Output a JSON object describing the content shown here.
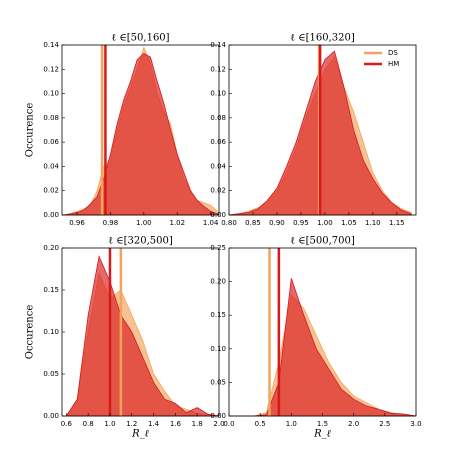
{
  "chart_data": [
    {
      "type": "area",
      "title": "ℓ ∈[50,160]",
      "ylabel": "Occurence",
      "x": [
        0.952,
        0.956,
        0.96,
        0.964,
        0.968,
        0.972,
        0.976,
        0.98,
        0.984,
        0.988,
        0.992,
        0.996,
        1.0,
        1.004,
        1.008,
        1.012,
        1.016,
        1.02,
        1.024,
        1.028,
        1.032,
        1.036,
        1.04,
        1.044
      ],
      "series": [
        {
          "color": "#f5a35b",
          "mean": 0.975,
          "values": [
            0,
            0.001,
            0.003,
            0.005,
            0.008,
            0.02,
            0.04,
            0.045,
            0.07,
            0.09,
            0.105,
            0.12,
            0.138,
            0.125,
            0.1,
            0.085,
            0.075,
            0.05,
            0.03,
            0.02,
            0.012,
            0.01,
            0.008,
            0.003
          ]
        },
        {
          "color": "#d7191c",
          "mean": 0.977,
          "values": [
            0,
            0.001,
            0.002,
            0.004,
            0.009,
            0.015,
            0.03,
            0.05,
            0.075,
            0.095,
            0.11,
            0.128,
            0.133,
            0.13,
            0.11,
            0.092,
            0.07,
            0.05,
            0.035,
            0.02,
            0.012,
            0.007,
            0.003,
            0.001
          ]
        }
      ],
      "xlim": [
        0.951,
        1.045
      ],
      "ylim": [
        0,
        0.14
      ],
      "xticks": [
        0.96,
        0.98,
        {
          "value": 1,
          "label": "1.00"
        },
        1.02,
        1.04
      ],
      "yticks": [
        {
          "value": 0,
          "label": "0.00"
        },
        0.02,
        0.04,
        0.06,
        0.08,
        {
          "value": 0.1,
          "label": "0.10"
        },
        0.12,
        0.14
      ]
    },
    {
      "type": "area",
      "title": "ℓ ∈[160,320]",
      "legend": "upper right",
      "x": [
        0.8,
        0.82,
        0.84,
        0.86,
        0.88,
        0.9,
        0.92,
        0.94,
        0.96,
        0.98,
        1.0,
        1.02,
        1.04,
        1.06,
        1.08,
        1.1,
        1.12,
        1.14,
        1.16,
        1.18
      ],
      "series": [
        {
          "name": "DS",
          "color": "#f5a35b",
          "mean": 0.988,
          "values": [
            0,
            0.001,
            0.003,
            0.006,
            0.01,
            0.02,
            0.035,
            0.055,
            0.08,
            0.1,
            0.12,
            0.13,
            0.105,
            0.085,
            0.06,
            0.035,
            0.02,
            0.01,
            0.005,
            0.002
          ]
        },
        {
          "name": "HM",
          "color": "#d7191c",
          "mean": 0.99,
          "values": [
            0,
            0.001,
            0.002,
            0.005,
            0.012,
            0.022,
            0.04,
            0.06,
            0.085,
            0.11,
            0.128,
            0.135,
            0.105,
            0.07,
            0.045,
            0.03,
            0.018,
            0.01,
            0.004,
            0.001
          ]
        }
      ],
      "xlim": [
        0.8,
        1.19
      ],
      "ylim": [
        0,
        0.14
      ],
      "xticks": [
        {
          "value": 0.8,
          "label": "0.80"
        },
        0.85,
        {
          "value": 0.9,
          "label": "0.90"
        },
        0.95,
        {
          "value": 1,
          "label": "1.00"
        },
        1.05,
        {
          "value": 1.1,
          "label": "1.10"
        },
        1.15
      ],
      "yticks": [
        {
          "value": 0,
          "label": "0.00"
        },
        0.02,
        0.04,
        0.06,
        0.08,
        {
          "value": 0.1,
          "label": "0.10"
        },
        0.12,
        0.14
      ]
    },
    {
      "type": "area",
      "title": "ℓ ∈[320,500]",
      "ylabel": "Occurence",
      "xlabel": "R_ℓ",
      "x": [
        0.6,
        0.7,
        0.8,
        0.9,
        1.0,
        1.1,
        1.2,
        1.3,
        1.4,
        1.5,
        1.6,
        1.7,
        1.8,
        1.9,
        2.0
      ],
      "series": [
        {
          "color": "#f5a35b",
          "mean": 1.1,
          "values": [
            0,
            0.02,
            0.1,
            0.17,
            0.14,
            0.15,
            0.12,
            0.09,
            0.05,
            0.03,
            0.012,
            0.008,
            0.003,
            0.002,
            0
          ]
        },
        {
          "color": "#d7191c",
          "mean": 1.0,
          "values": [
            0,
            0.02,
            0.12,
            0.19,
            0.16,
            0.12,
            0.1,
            0.07,
            0.04,
            0.02,
            0.015,
            0.004,
            0.01,
            0.002,
            0
          ]
        }
      ],
      "xlim": [
        0.56,
        2.0
      ],
      "ylim": [
        0,
        0.2
      ],
      "xticks": [
        0.6,
        0.8,
        {
          "value": 1,
          "label": "1.0"
        },
        1.2,
        1.4,
        1.6,
        1.8,
        {
          "value": 2,
          "label": "2.0"
        }
      ],
      "yticks": [
        {
          "value": 0,
          "label": "0.00"
        },
        0.05,
        {
          "value": 0.1,
          "label": "0.10"
        },
        0.15,
        {
          "value": 0.2,
          "label": "0.20"
        }
      ]
    },
    {
      "type": "area",
      "title": "ℓ ∈[500,700]",
      "xlabel": "R_ℓ",
      "x": [
        0,
        0.2,
        0.4,
        0.6,
        0.8,
        1.0,
        1.2,
        1.4,
        1.6,
        1.8,
        2.0,
        2.2,
        2.4,
        2.6,
        2.8,
        3.0
      ],
      "series": [
        {
          "color": "#f5a35b",
          "mean": 0.65,
          "values": [
            0,
            0,
            0,
            0.005,
            0.08,
            0.18,
            0.16,
            0.12,
            0.08,
            0.05,
            0.03,
            0.02,
            0.01,
            0.005,
            0.002,
            0
          ]
        },
        {
          "color": "#d7191c",
          "mean": 0.8,
          "values": [
            0,
            0,
            0,
            0.002,
            0.05,
            0.205,
            0.15,
            0.1,
            0.07,
            0.04,
            0.025,
            0.015,
            0.01,
            0.004,
            0.003,
            0
          ]
        }
      ],
      "xlim": [
        0,
        3
      ],
      "ylim": [
        0,
        0.25
      ],
      "xticks": [
        {
          "value": 0,
          "label": "0.0"
        },
        0.5,
        {
          "value": 1,
          "label": "1.0"
        },
        1.5,
        {
          "value": 2,
          "label": "2.0"
        },
        2.5,
        {
          "value": 3,
          "label": "3.0"
        }
      ],
      "yticks": [
        {
          "value": 0,
          "label": "0.00"
        },
        0.05,
        {
          "value": 0.1,
          "label": "0.10"
        },
        0.15,
        {
          "value": 0.2,
          "label": "0.20"
        },
        0.25
      ]
    }
  ]
}
